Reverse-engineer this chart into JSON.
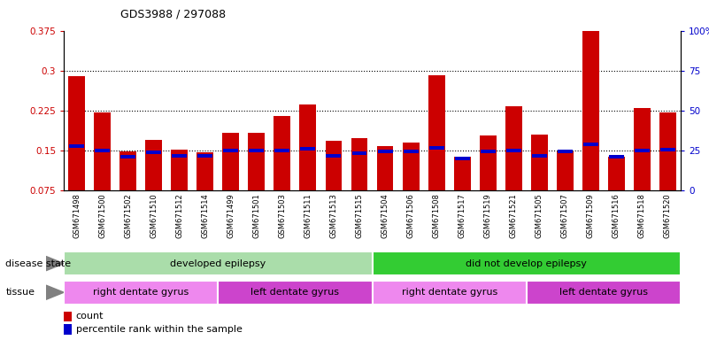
{
  "title": "GDS3988 / 297088",
  "samples": [
    "GSM671498",
    "GSM671500",
    "GSM671502",
    "GSM671510",
    "GSM671512",
    "GSM671514",
    "GSM671499",
    "GSM671501",
    "GSM671503",
    "GSM671511",
    "GSM671513",
    "GSM671515",
    "GSM671504",
    "GSM671506",
    "GSM671508",
    "GSM671517",
    "GSM671519",
    "GSM671521",
    "GSM671505",
    "GSM671507",
    "GSM671509",
    "GSM671516",
    "GSM671518",
    "GSM671520"
  ],
  "count_values": [
    0.29,
    0.222,
    0.148,
    0.17,
    0.152,
    0.147,
    0.183,
    0.183,
    0.215,
    0.237,
    0.168,
    0.173,
    0.158,
    0.165,
    0.291,
    0.138,
    0.178,
    0.233,
    0.18,
    0.148,
    0.375,
    0.138,
    0.23,
    0.222
  ],
  "percentile_values": [
    0.158,
    0.15,
    0.138,
    0.147,
    0.14,
    0.14,
    0.15,
    0.15,
    0.15,
    0.153,
    0.14,
    0.145,
    0.148,
    0.148,
    0.155,
    0.135,
    0.148,
    0.15,
    0.14,
    0.148,
    0.162,
    0.138,
    0.15,
    0.152
  ],
  "bar_color": "#cc0000",
  "percentile_color": "#0000cc",
  "ylim_left": [
    0.075,
    0.375
  ],
  "ylim_right": [
    0,
    100
  ],
  "yticks_left": [
    0.075,
    0.15,
    0.225,
    0.3,
    0.375
  ],
  "yticks_right": [
    0,
    25,
    50,
    75,
    100
  ],
  "ytick_labels_left": [
    "0.075",
    "0.15",
    "0.225",
    "0.3",
    "0.375"
  ],
  "ytick_labels_right": [
    "0",
    "25",
    "50",
    "75",
    "100%"
  ],
  "grid_lines": [
    0.15,
    0.225,
    0.3
  ],
  "disease_state_groups": [
    {
      "label": "developed epilepsy",
      "start": 0,
      "end": 12,
      "color": "#aaddaa"
    },
    {
      "label": "did not develop epilepsy",
      "start": 12,
      "end": 24,
      "color": "#33cc33"
    }
  ],
  "tissue_groups": [
    {
      "label": "right dentate gyrus",
      "start": 0,
      "end": 6,
      "color": "#ee88ee"
    },
    {
      "label": "left dentate gyrus",
      "start": 6,
      "end": 12,
      "color": "#cc44cc"
    },
    {
      "label": "right dentate gyrus",
      "start": 12,
      "end": 18,
      "color": "#ee88ee"
    },
    {
      "label": "left dentate gyrus",
      "start": 18,
      "end": 24,
      "color": "#cc44cc"
    }
  ],
  "disease_state_label": "disease state",
  "tissue_label": "tissue",
  "legend_count_label": "count",
  "legend_percentile_label": "percentile rank within the sample",
  "bar_width": 0.65,
  "plot_bg": "#ffffff",
  "xtick_area_bg": "#d0d0d0"
}
